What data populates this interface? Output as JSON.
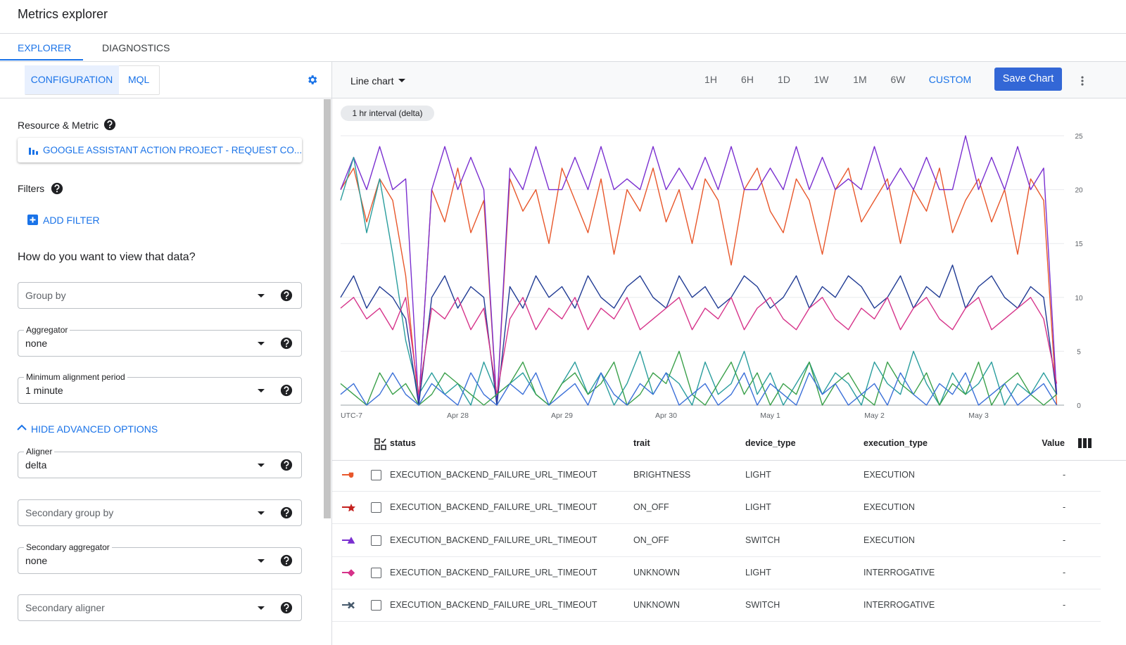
{
  "header": {
    "title": "Metrics explorer"
  },
  "tabs": [
    "EXPLORER",
    "DIAGNOSTICS"
  ],
  "mode_tabs": [
    "CONFIGURATION",
    "MQL"
  ],
  "config": {
    "resource_label": "Resource & Metric",
    "metric": "GOOGLE ASSISTANT ACTION PROJECT - REQUEST CO...",
    "filters_label": "Filters",
    "add_filter": "ADD FILTER",
    "view_heading": "How do you want to view that data?",
    "advanced_toggle": "HIDE ADVANCED OPTIONS",
    "fields": [
      {
        "placeholder": "Group by"
      },
      {
        "label": "Aggregator",
        "value": "none"
      },
      {
        "label": "Minimum alignment period",
        "value": "1 minute"
      },
      {
        "label": "Aligner",
        "value": "delta"
      },
      {
        "placeholder": "Secondary group by"
      },
      {
        "label": "Secondary aggregator",
        "value": "none"
      },
      {
        "placeholder": "Secondary aligner"
      }
    ]
  },
  "toolbar": {
    "chart_type": "Line chart",
    "ranges": [
      "1H",
      "6H",
      "1D",
      "1W",
      "1M",
      "6W",
      "CUSTOM"
    ],
    "active_range": "CUSTOM",
    "save": "Save Chart"
  },
  "chart_data": {
    "type": "line",
    "interval_label": "1 hr interval (delta)",
    "categories": [
      "UTC-7",
      null,
      null,
      null,
      null,
      null,
      null,
      null,
      null,
      "Apr 28",
      null,
      null,
      null,
      null,
      null,
      null,
      null,
      "Apr 29",
      null,
      null,
      null,
      null,
      null,
      null,
      null,
      "Apr 30",
      null,
      null,
      null,
      null,
      null,
      null,
      null,
      "May 1",
      null,
      null,
      null,
      null,
      null,
      null,
      null,
      "May 2",
      null,
      null,
      null,
      null,
      null,
      null,
      null,
      "May 3",
      null,
      null,
      null,
      null,
      null,
      null
    ],
    "ylim": [
      0,
      25
    ],
    "yticks": [
      0,
      5,
      10,
      15,
      20,
      25
    ],
    "grid": true,
    "series": [
      {
        "color": "#e8572b",
        "values": [
          20,
          22,
          17,
          21,
          19,
          12,
          0,
          20,
          17,
          22,
          16,
          19,
          0,
          21,
          18,
          20,
          15,
          22,
          19,
          16,
          21,
          14,
          20,
          18,
          22,
          17,
          20,
          15,
          21,
          19,
          13,
          20,
          22,
          18,
          16,
          21,
          19,
          14,
          20,
          22,
          17,
          19,
          21,
          15,
          20,
          18,
          22,
          16,
          19,
          21,
          17,
          20,
          14,
          21,
          19,
          0
        ]
      },
      {
        "color": "#7a2fd0",
        "values": [
          20,
          23,
          20,
          24,
          20,
          21,
          0,
          20,
          24,
          20,
          23,
          20,
          0,
          22,
          20,
          24,
          20,
          20,
          23,
          20,
          24,
          20,
          21,
          20,
          24,
          20,
          22,
          20,
          23,
          20,
          24,
          20,
          20,
          22,
          20,
          24,
          20,
          23,
          20,
          21,
          20,
          24,
          20,
          22,
          20,
          23,
          20,
          20,
          25,
          20,
          23,
          20,
          24,
          20,
          22,
          1
        ]
      },
      {
        "color": "#2a9d9d",
        "values": [
          19,
          23,
          16,
          21,
          14,
          6,
          1,
          3,
          1,
          2,
          0,
          4,
          1,
          2,
          3,
          1,
          0,
          2,
          4,
          1,
          3,
          0,
          2,
          5,
          1,
          3,
          2,
          0,
          4,
          1,
          2,
          5,
          1,
          3,
          0,
          2,
          4,
          1,
          3,
          2,
          0,
          4,
          2,
          1,
          5,
          2,
          0,
          3,
          1,
          2,
          4,
          0,
          2,
          1,
          3,
          1
        ]
      },
      {
        "color": "#1f3a93",
        "values": [
          10,
          12,
          9,
          11,
          10,
          8,
          0,
          10,
          12,
          9,
          11,
          10,
          0,
          11,
          9,
          12,
          10,
          11,
          9,
          12,
          10,
          9,
          11,
          12,
          10,
          9,
          12,
          10,
          11,
          9,
          10,
          12,
          11,
          9,
          10,
          12,
          9,
          11,
          10,
          12,
          11,
          9,
          10,
          12,
          9,
          11,
          10,
          13,
          9,
          11,
          12,
          10,
          9,
          11,
          10,
          1
        ]
      },
      {
        "color": "#d6338a",
        "values": [
          9,
          10,
          8,
          9,
          7,
          10,
          1,
          9,
          8,
          10,
          7,
          9,
          1,
          8,
          10,
          7,
          9,
          8,
          10,
          7,
          9,
          8,
          10,
          7,
          8,
          9,
          10,
          7,
          9,
          8,
          10,
          7,
          9,
          10,
          8,
          7,
          9,
          10,
          8,
          7,
          9,
          8,
          10,
          7,
          9,
          10,
          8,
          7,
          9,
          10,
          7,
          8,
          9,
          10,
          8,
          2
        ]
      },
      {
        "color": "#3aa04a",
        "values": [
          2,
          1,
          0,
          3,
          1,
          2,
          0,
          1,
          3,
          2,
          1,
          0,
          1,
          2,
          4,
          1,
          0,
          2,
          3,
          1,
          2,
          4,
          0,
          1,
          3,
          2,
          5,
          1,
          0,
          2,
          4,
          1,
          3,
          0,
          2,
          1,
          4,
          0,
          2,
          3,
          1,
          0,
          4,
          2,
          1,
          3,
          0,
          2,
          1,
          4,
          0,
          2,
          3,
          1,
          0,
          1
        ]
      },
      {
        "color": "#3a6fd8",
        "values": [
          1,
          2,
          0,
          1,
          3,
          1,
          0,
          2,
          1,
          0,
          3,
          1,
          0,
          2,
          1,
          3,
          0,
          1,
          2,
          0,
          3,
          1,
          0,
          2,
          1,
          3,
          0,
          1,
          2,
          0,
          1,
          3,
          0,
          2,
          1,
          0,
          3,
          1,
          2,
          0,
          1,
          2,
          0,
          3,
          1,
          0,
          2,
          1,
          3,
          0,
          1,
          2,
          0,
          1,
          2,
          0
        ]
      }
    ]
  },
  "table": {
    "columns": [
      "status",
      "trait",
      "device_type",
      "execution_type",
      "Value"
    ],
    "rows": [
      [
        "EXECUTION_BACKEND_FAILURE_URL_TIMEOUT",
        "BRIGHTNESS",
        "LIGHT",
        "EXECUTION",
        "-"
      ],
      [
        "EXECUTION_BACKEND_FAILURE_URL_TIMEOUT",
        "ON_OFF",
        "LIGHT",
        "EXECUTION",
        "-"
      ],
      [
        "EXECUTION_BACKEND_FAILURE_URL_TIMEOUT",
        "ON_OFF",
        "SWITCH",
        "EXECUTION",
        "-"
      ],
      [
        "EXECUTION_BACKEND_FAILURE_URL_TIMEOUT",
        "UNKNOWN",
        "LIGHT",
        "INTERROGATIVE",
        "-"
      ],
      [
        "EXECUTION_BACKEND_FAILURE_URL_TIMEOUT",
        "UNKNOWN",
        "SWITCH",
        "INTERROGATIVE",
        "-"
      ]
    ]
  }
}
